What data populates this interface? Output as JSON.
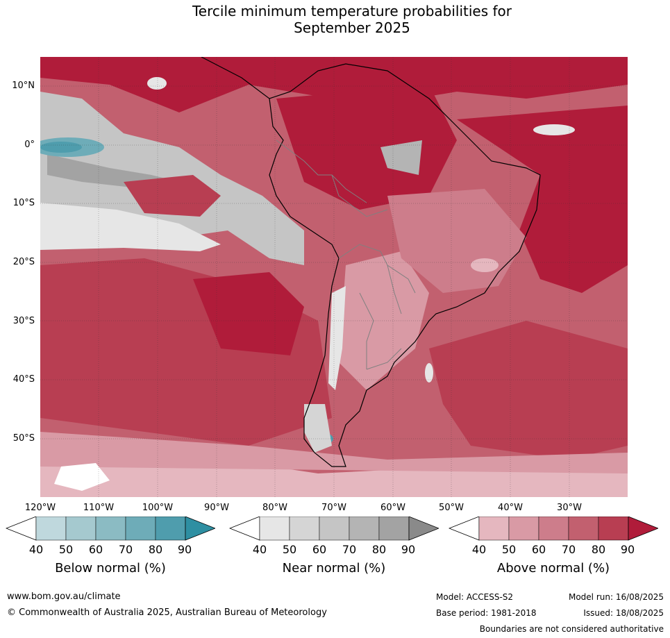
{
  "title_line1": "Tercile minimum temperature probabilities for",
  "title_line2": "September 2025",
  "lat_labels": [
    "10°N",
    "0°",
    "10°S",
    "20°S",
    "30°S",
    "40°S",
    "50°S"
  ],
  "lon_labels": [
    "120°W",
    "110°W",
    "100°W",
    "90°W",
    "80°W",
    "70°W",
    "60°W",
    "50°W",
    "40°W",
    "30°W"
  ],
  "colorbars": [
    {
      "label": "Below normal (%)",
      "ticks": [
        "40",
        "50",
        "60",
        "70",
        "80",
        "90"
      ],
      "colors": [
        "#bfd8dd",
        "#a5c9cf",
        "#8bbbc3",
        "#6eacb8",
        "#4f9dad",
        "#2e8fa2"
      ]
    },
    {
      "label": "Near normal (%)",
      "ticks": [
        "40",
        "50",
        "60",
        "70",
        "80",
        "90"
      ],
      "colors": [
        "#e6e6e6",
        "#d5d5d5",
        "#c5c5c5",
        "#b4b4b4",
        "#a3a3a3",
        "#8a8a8a"
      ]
    },
    {
      "label": "Above normal (%)",
      "ticks": [
        "40",
        "50",
        "60",
        "70",
        "80",
        "90"
      ],
      "colors": [
        "#e5b7bf",
        "#d99aa5",
        "#cd7d8b",
        "#c2606f",
        "#b83e52",
        "#b01c3a"
      ]
    }
  ],
  "footer": {
    "website": "www.bom.gov.au/climate",
    "copyright": "© Commonwealth of Australia 2025, Australian Bureau of Meteorology",
    "model": "Model: ACCESS-S2",
    "base_period": "Base period: 1981-2018",
    "model_run": "Model run: 16/08/2025",
    "issued": "Issued: 18/08/2025",
    "disclaimer": "Boundaries are not considered authoritative"
  }
}
